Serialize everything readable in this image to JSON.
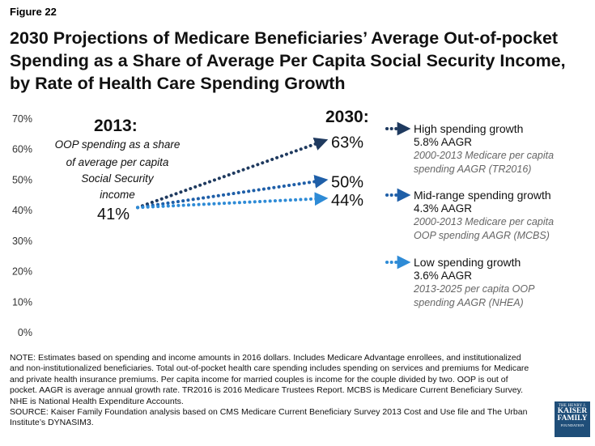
{
  "figure_label": "Figure 22",
  "title": "2030 Projections of Medicare Beneficiaries’ Average Out-of-pocket Spending as a Share of Average Per Capita Social Security Income, by Rate of Health Care Spending Growth",
  "chart_data": {
    "type": "line",
    "title": "2030 Projections of Medicare Beneficiaries’ Average Out-of-pocket Spending as a Share of Average Per Capita Social Security Income, by Rate of Health Care Spending Growth",
    "ylim": [
      0,
      70
    ],
    "y_ticks": [
      "0%",
      "10%",
      "20%",
      "30%",
      "40%",
      "50%",
      "60%",
      "70%"
    ],
    "x": [
      "2013",
      "2030"
    ],
    "start_header": "2013:",
    "start_caption": [
      "OOP spending as a share",
      "of average per capita",
      "Social Security",
      "income"
    ],
    "start_label": "41%",
    "end_header": "2030:",
    "series": [
      {
        "name": "High spending growth",
        "values": [
          41,
          63
        ],
        "end_label": "63%",
        "color": "#1f3a5f",
        "rate": "5.8% AAGR",
        "source_lines": [
          "2000-2013 Medicare per capita",
          "spending AAGR (TR2016)"
        ]
      },
      {
        "name": "Mid-range spending growth",
        "values": [
          41,
          50
        ],
        "end_label": "50%",
        "color": "#1f5fa8",
        "rate": "4.3% AAGR",
        "source_lines": [
          "2000-2013 Medicare per capita",
          "OOP spending AAGR (MCBS)"
        ]
      },
      {
        "name": "Low spending growth",
        "values": [
          41,
          44
        ],
        "end_label": "44%",
        "color": "#2e8bd6",
        "rate": "3.6% AAGR",
        "source_lines": [
          "2013-2025 per capita OOP",
          "spending AAGR (NHEA)"
        ]
      }
    ]
  },
  "notes": [
    "NOTE: Estimates based on spending and income amounts in 2016 dollars. Includes Medicare Advantage enrollees, and institutionalized and non-institutionalized beneficiaries. Total out-of-pocket  health care spending includes spending on services and premiums for Medicare and private health insurance premiums.  Per capita income for married couples is income for the couple divided by two. OOP is out of pocket. AAGR is average annual growth rate. TR2016 is 2016 Medicare Trustees Report. MCBS is Medicare Current Beneficiary Survey.  NHE is National Health Expenditure Accounts.",
    "SOURCE: Kaiser Family Foundation  analysis based on CMS Medicare Current Beneficiary Survey  2013 Cost and Use file and The Urban Institute’s DYNASIM3."
  ],
  "logo": {
    "line1": "THE HENRY J.",
    "line2": "KAISER",
    "line3": "FAMILY",
    "line4": "FOUNDATION"
  }
}
